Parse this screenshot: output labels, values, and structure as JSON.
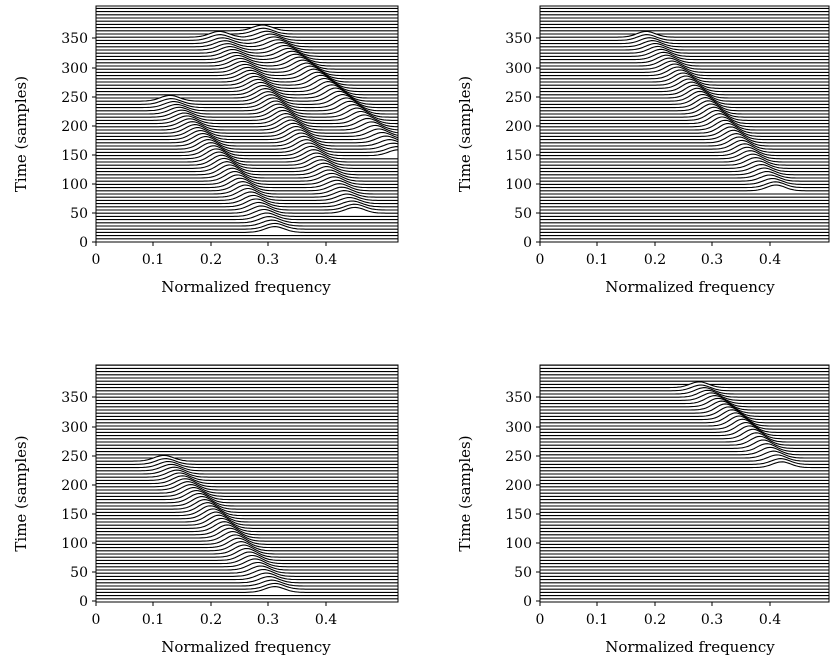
{
  "figure": {
    "panel_count": 4,
    "background_color": "#ffffff",
    "trace_color": "#000000"
  },
  "chart_data": [
    {
      "type": "line",
      "style": "waterfall (stacked time traces, hidden-line)",
      "xlabel": "Normalized frequency",
      "ylabel": "Time (samples)",
      "xlim": [
        0,
        0.49
      ],
      "ylim": [
        0,
        400
      ],
      "x_ticks": [
        "0",
        "0.1",
        "0.2",
        "0.3",
        "0.4"
      ],
      "y_ticks": [
        "0",
        "50",
        "100",
        "150",
        "200",
        "250",
        "300",
        "350"
      ],
      "components": [
        {
          "t_start": 20,
          "t_end": 220,
          "f_start": 0.29,
          "f_end": 0.12
        },
        {
          "t_start": 50,
          "t_end": 320,
          "f_start": 0.42,
          "f_end": 0.2
        },
        {
          "t_start": 140,
          "t_end": 330,
          "f_start": 0.49,
          "f_end": 0.27
        }
      ]
    },
    {
      "type": "line",
      "style": "waterfall (stacked time traces, hidden-line)",
      "xlabel": "Normalized frequency",
      "ylabel": "Time (samples)",
      "xlim": [
        0,
        0.49
      ],
      "ylim": [
        0,
        400
      ],
      "x_ticks": [
        "0",
        "0.1",
        "0.2",
        "0.3",
        "0.4"
      ],
      "y_ticks": [
        "0",
        "50",
        "100",
        "150",
        "200",
        "250",
        "300",
        "350"
      ],
      "components": [
        {
          "t_start": 85,
          "t_end": 320,
          "f_start": 0.4,
          "f_end": 0.18
        }
      ]
    },
    {
      "type": "line",
      "style": "waterfall (stacked time traces, hidden-line)",
      "xlabel": "Normalized frequency",
      "ylabel": "Time (samples)",
      "xlim": [
        0,
        0.49
      ],
      "ylim": [
        0,
        400
      ],
      "x_ticks": [
        "0",
        "0.1",
        "0.2",
        "0.3",
        "0.4"
      ],
      "y_ticks": [
        "0",
        "50",
        "100",
        "150",
        "200",
        "250",
        "300",
        "350"
      ],
      "components": [
        {
          "t_start": 20,
          "t_end": 220,
          "f_start": 0.29,
          "f_end": 0.11
        }
      ]
    },
    {
      "type": "line",
      "style": "waterfall (stacked time traces, hidden-line)",
      "xlabel": "Normalized frequency",
      "ylabel": "Time (samples)",
      "xlim": [
        0,
        0.49
      ],
      "ylim": [
        0,
        400
      ],
      "x_ticks": [
        "0",
        "0.1",
        "0.2",
        "0.3",
        "0.4"
      ],
      "y_ticks": [
        "0",
        "50",
        "100",
        "150",
        "200",
        "250",
        "300",
        "350"
      ],
      "components": [
        {
          "t_start": 215,
          "t_end": 335,
          "f_start": 0.41,
          "f_end": 0.27
        }
      ]
    }
  ]
}
